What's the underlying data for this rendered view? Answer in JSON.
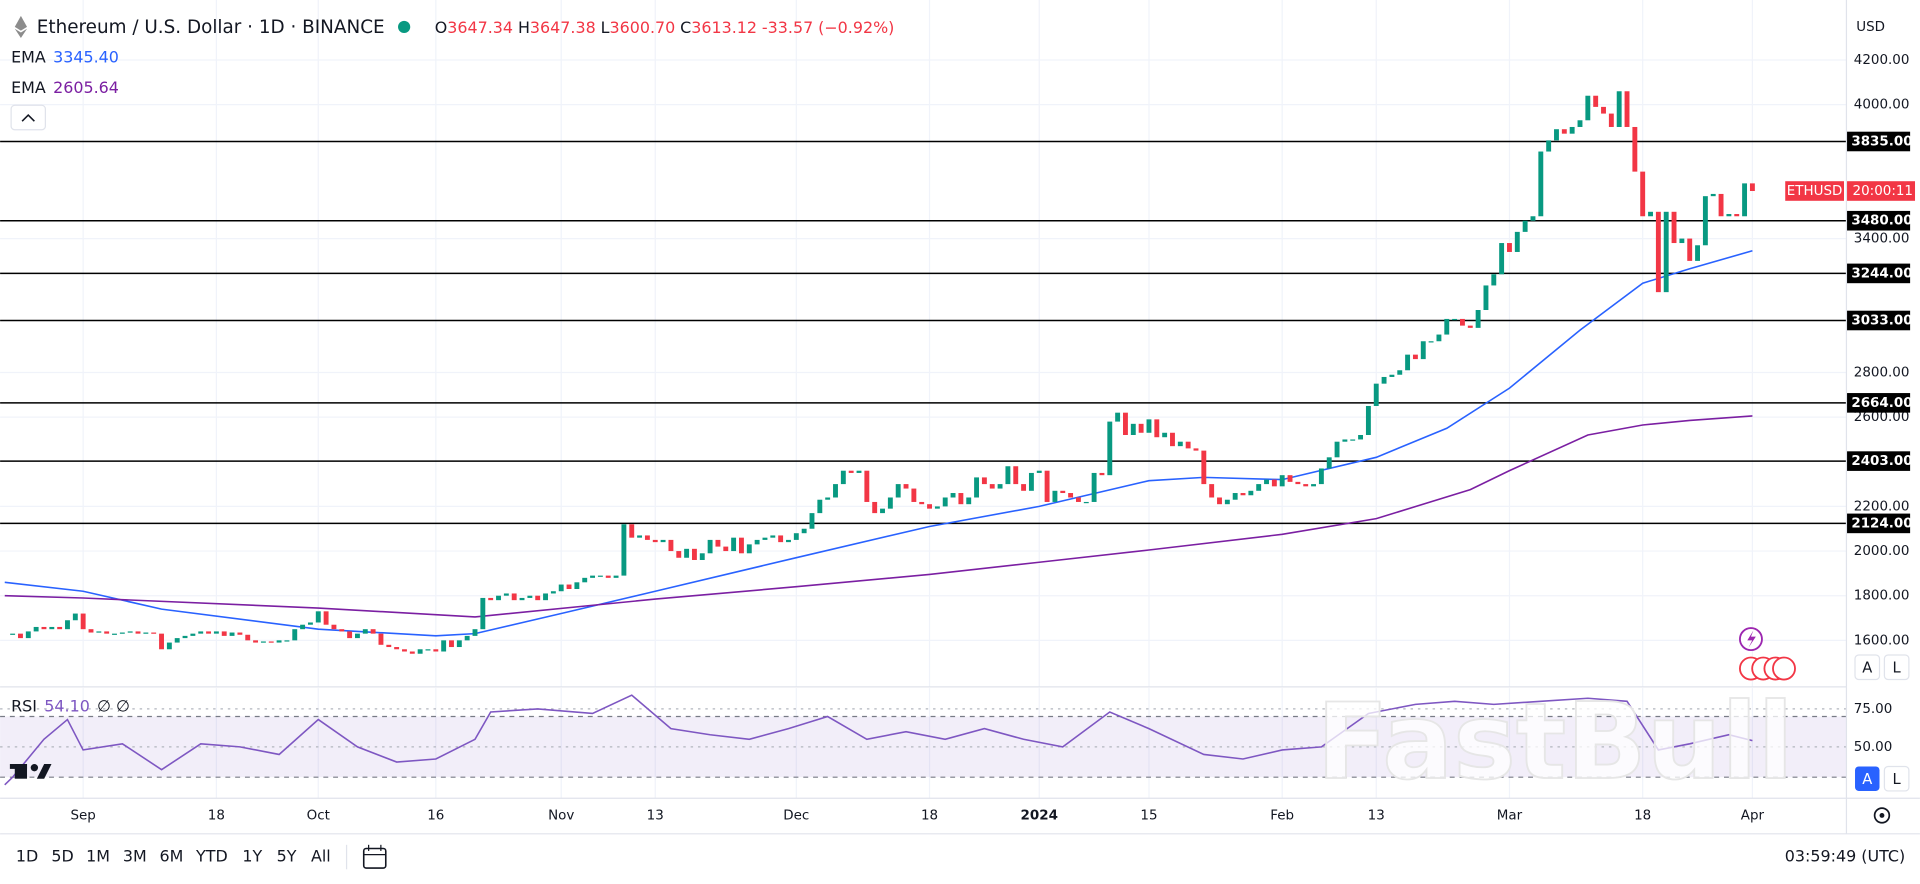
{
  "header": {
    "symbol": "Ethereum / U.S. Dollar · 1D · BINANCE",
    "o_label": "O",
    "open": 3647.34,
    "h_label": "H",
    "high": 3647.38,
    "l_label": "L",
    "low": "3600.70",
    "c_label": "C",
    "close": 3613.12,
    "change": -33.57,
    "change_pct": "(−0.92%)"
  },
  "chart_data": {
    "type": "candlestick",
    "currency": "USD",
    "colors": {
      "up": "#089981",
      "down": "#f23645"
    },
    "xlim": [
      -10.6,
      225
    ],
    "xticks": [
      {
        "value": 0,
        "label": "Sep"
      },
      {
        "value": 17,
        "label": "18"
      },
      {
        "value": 30,
        "label": "Oct"
      },
      {
        "value": 45,
        "label": "16"
      },
      {
        "value": 61,
        "label": "Nov"
      },
      {
        "value": 73,
        "label": "13"
      },
      {
        "value": 91,
        "label": "Dec"
      },
      {
        "value": 108,
        "label": "18"
      },
      {
        "value": 122,
        "label": "2024"
      },
      {
        "value": 136,
        "label": "15"
      },
      {
        "value": 153,
        "label": "Feb"
      },
      {
        "value": 165,
        "label": "13"
      },
      {
        "value": 182,
        "label": "Mar"
      },
      {
        "value": 199,
        "label": "18"
      },
      {
        "value": 213,
        "label": "Apr"
      }
    ],
    "ylim": [
      1397,
      4425
    ],
    "yticks": [
      {
        "value": 1600,
        "label": "1600.00"
      },
      {
        "value": 1800,
        "label": "1800.00"
      },
      {
        "value": 2000,
        "label": "2000.00"
      },
      {
        "value": 2200,
        "label": "2200.00"
      },
      {
        "value": 2600,
        "label": "2600.00"
      },
      {
        "value": 2800,
        "label": "2800.00"
      },
      {
        "value": 3400,
        "label": "3400.00"
      },
      {
        "value": 4000,
        "label": "4000.00"
      },
      {
        "value": 4200,
        "label": "4200.00"
      }
    ],
    "grid": true,
    "levels": [
      {
        "value": 3835,
        "label": "3835.00"
      },
      {
        "value": 3480,
        "label": "3480.00"
      },
      {
        "value": 3244,
        "label": "3244.00"
      },
      {
        "value": 3033,
        "label": "3033.00"
      },
      {
        "value": 2664,
        "label": "2664.00"
      },
      {
        "value": 2403,
        "label": "2403.00"
      },
      {
        "value": 2124,
        "label": "2124.00"
      }
    ],
    "x": [
      -9,
      -8,
      -7,
      -6,
      -5,
      -4,
      -3,
      -2,
      -1,
      0,
      1,
      2,
      3,
      4,
      5,
      6,
      7,
      8,
      9,
      10,
      11,
      12,
      13,
      14,
      15,
      16,
      17,
      18,
      19,
      20,
      21,
      22,
      23,
      24,
      25,
      26,
      27,
      28,
      29,
      30,
      31,
      32,
      33,
      34,
      35,
      36,
      37,
      38,
      39,
      40,
      41,
      42,
      43,
      44,
      45,
      46,
      47,
      48,
      49,
      50,
      51,
      52,
      53,
      54,
      55,
      56,
      57,
      58,
      59,
      60,
      61,
      62,
      63,
      64,
      65,
      66,
      67,
      68,
      69,
      70,
      71,
      72,
      73,
      74,
      75,
      76,
      77,
      78,
      79,
      80,
      81,
      82,
      83,
      84,
      85,
      86,
      87,
      88,
      89,
      90,
      91,
      92,
      93,
      94,
      95,
      96,
      97,
      98,
      99,
      100,
      101,
      102,
      103,
      104,
      105,
      106,
      107,
      108,
      109,
      110,
      111,
      112,
      113,
      114,
      115,
      116,
      117,
      118,
      119,
      120,
      121,
      122,
      123,
      124,
      125,
      126,
      127,
      128,
      129,
      130,
      131,
      132,
      133,
      134,
      135,
      136,
      137,
      138,
      139,
      140,
      141,
      142,
      143,
      144,
      145,
      146,
      147,
      148,
      149,
      150,
      151,
      152,
      153,
      154,
      155,
      156,
      157,
      158,
      159,
      160,
      161,
      162,
      163,
      164,
      165,
      166,
      167,
      168,
      169,
      170,
      171,
      172,
      173,
      174,
      175,
      176,
      177,
      178,
      179,
      180,
      181,
      182,
      183,
      184,
      185,
      186,
      187,
      188,
      189,
      190,
      191,
      192,
      193,
      194,
      195,
      196,
      197,
      198,
      199,
      200,
      201,
      202,
      203,
      204,
      205,
      206,
      207,
      208,
      209,
      210,
      211,
      212,
      213
    ],
    "close": [
      1630,
      1610,
      1640,
      1660,
      1650,
      1660,
      1650,
      1690,
      1720,
      1650,
      1635,
      1640,
      1630,
      1630,
      1635,
      1640,
      1630,
      1635,
      1630,
      1560,
      1590,
      1610,
      1620,
      1630,
      1640,
      1630,
      1640,
      1620,
      1635,
      1625,
      1600,
      1590,
      1595,
      1590,
      1600,
      1600,
      1650,
      1670,
      1680,
      1730,
      1670,
      1650,
      1640,
      1610,
      1630,
      1650,
      1630,
      1580,
      1570,
      1560,
      1550,
      1540,
      1560,
      1560,
      1550,
      1600,
      1570,
      1600,
      1620,
      1650,
      1790,
      1780,
      1800,
      1810,
      1780,
      1790,
      1800,
      1780,
      1810,
      1820,
      1850,
      1830,
      1860,
      1880,
      1890,
      1890,
      1880,
      1890,
      2120,
      2060,
      2070,
      2050,
      2040,
      2050,
      2000,
      1970,
      2010,
      1960,
      1990,
      2050,
      2020,
      2000,
      2060,
      1990,
      2030,
      2050,
      2060,
      2070,
      2040,
      2050,
      2080,
      2100,
      2170,
      2230,
      2240,
      2300,
      2360,
      2350,
      2360,
      2220,
      2170,
      2190,
      2240,
      2300,
      2280,
      2220,
      2210,
      2190,
      2200,
      2240,
      2260,
      2210,
      2240,
      2330,
      2300,
      2280,
      2300,
      2380,
      2300,
      2270,
      2350,
      2360,
      2220,
      2270,
      2260,
      2240,
      2220,
      2220,
      2350,
      2340,
      2580,
      2620,
      2520,
      2570,
      2530,
      2590,
      2510,
      2530,
      2470,
      2490,
      2460,
      2450,
      2300,
      2240,
      2210,
      2230,
      2260,
      2250,
      2270,
      2300,
      2320,
      2290,
      2340,
      2310,
      2300,
      2290,
      2300,
      2370,
      2420,
      2490,
      2500,
      2500,
      2520,
      2650,
      2750,
      2780,
      2790,
      2810,
      2880,
      2860,
      2940,
      2940,
      2970,
      3040,
      3040,
      3010,
      3000,
      3080,
      3190,
      3240,
      3380,
      3340,
      3430,
      3480,
      3500,
      3790,
      3840,
      3890,
      3870,
      3900,
      3930,
      4040,
      3990,
      3960,
      3900,
      4060,
      3900,
      3700,
      3500,
      3520,
      3160,
      3520,
      3380,
      3400,
      3300,
      3370,
      3590,
      3600,
      3500,
      3510,
      3500,
      3647.34,
      3613.12
    ],
    "series": [
      {
        "name": "EMA",
        "color": "#2962ff",
        "value_label": "3345.40",
        "x": [
          -10,
          0,
          10,
          30,
          45,
          50,
          61,
          73,
          91,
          108,
          122,
          136,
          143,
          153,
          165,
          174,
          182,
          191,
          199,
          205,
          213
        ],
        "values": [
          1860,
          1820,
          1740,
          1650,
          1620,
          1630,
          1720,
          1820,
          1970,
          2110,
          2200,
          2315,
          2330,
          2320,
          2420,
          2550,
          2730,
          2990,
          3200,
          3265,
          3345.4
        ]
      },
      {
        "name": "EMA",
        "color": "#7b1fa2",
        "value_label": "2605.64",
        "x": [
          -10,
          0,
          30,
          50,
          73,
          91,
          108,
          122,
          136,
          153,
          165,
          177,
          182,
          192,
          199,
          205,
          213
        ],
        "values": [
          1800,
          1790,
          1745,
          1705,
          1785,
          1840,
          1895,
          1950,
          2005,
          2075,
          2145,
          2275,
          2360,
          2520,
          2565,
          2585,
          2605.64
        ]
      }
    ],
    "last_label": {
      "symbol": "ETHUSD",
      "countdown": "20:00:11",
      "color": "#f23645"
    },
    "rsi": {
      "name": "RSI",
      "value_label": "54.10",
      "extra": "∅ ∅",
      "color": "#7e57c2",
      "ylim": [
        16.1,
        87.9
      ],
      "yticks": [
        {
          "value": 75,
          "label": "75.00"
        },
        {
          "value": 50,
          "label": "50.00"
        }
      ],
      "band": [
        30,
        70
      ],
      "x": [
        -10,
        -9,
        -5,
        -2,
        0,
        5,
        10,
        15,
        20,
        25,
        30,
        35,
        40,
        45,
        50,
        52,
        58,
        65,
        70,
        75,
        80,
        85,
        90,
        95,
        100,
        105,
        110,
        115,
        120,
        125,
        131,
        136,
        143,
        148,
        153,
        158,
        164,
        170,
        175,
        180,
        186,
        192,
        197,
        201,
        205,
        210,
        213
      ],
      "values": [
        25,
        30,
        55,
        68,
        48,
        52,
        35,
        52,
        50,
        45,
        68,
        50,
        40,
        42,
        55,
        73,
        75,
        72,
        84,
        62,
        58,
        55,
        62,
        70,
        55,
        60,
        55,
        62,
        55,
        50,
        73,
        62,
        45,
        42,
        48,
        50,
        72,
        78,
        80,
        78,
        80,
        82,
        80,
        48,
        52,
        58,
        54.1
      ]
    },
    "watermark": "FastBull"
  },
  "toolbar": {
    "ranges": [
      "1D",
      "5D",
      "1M",
      "3M",
      "6M",
      "YTD",
      "1Y",
      "5Y",
      "All"
    ],
    "time": "03:59:49 (UTC)",
    "scale_auto": "A",
    "scale_log": "L"
  }
}
